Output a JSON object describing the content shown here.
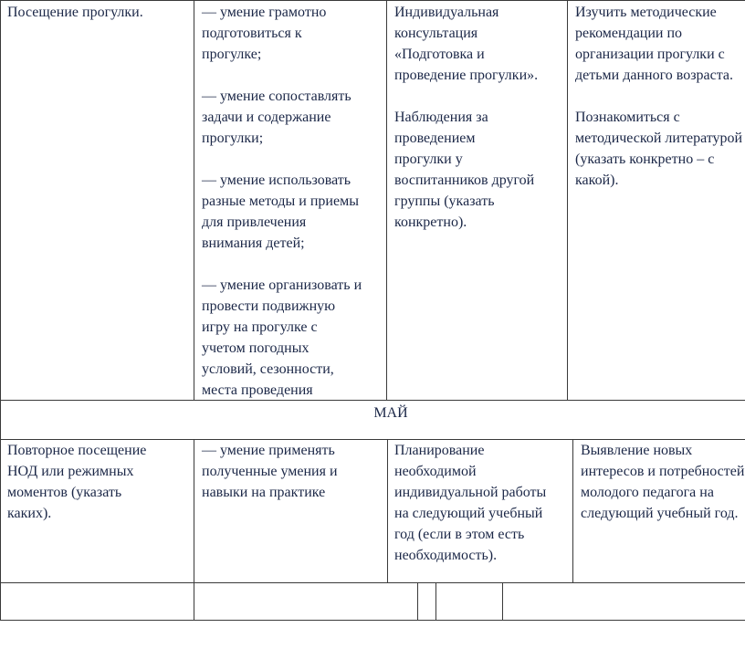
{
  "rows": [
    {
      "cells": [
        [
          "Посещение прогулки."
        ],
        [
          "— умение грамотно\nподготовиться к\nпрогулке;",
          "— умение сопоставлять\nзадачи и содержание\nпрогулки;",
          "—  умение использовать\nразные методы и приемы\nдля привлечения\nвнимания детей;",
          "— умение организовать и\nпровести подвижную\nигру на прогулке с\nучетом погодных\nусловий, сезонности,\nместа проведения"
        ],
        [
          "Индивидуальная\nконсультация\n«Подготовка и\nпроведение прогулки».",
          "Наблюдения за\nпроведением\nпрогулки  у\nвоспитанников другой\nгруппы (указать\nконкретно)."
        ],
        [
          "Изучить методические\nрекомендации по\nорганизации прогулки с\nдетьми данного возраста.",
          "Познакомиться с\nметодической литературой\n(указать конкретно – с\nкакой)."
        ]
      ]
    },
    {
      "cells": [
        [
          "Повторное посещение\nНОД или режимных\nмоментов (указать\nкаких)."
        ],
        [
          "— умение применять\nполученные умения и\nнавыки на практике"
        ],
        [
          "Планирование\nнеобходимой\nиндивидуальной работы\nна следующий учебный\nгод (если в этом есть\nнеобходимость)."
        ],
        [
          "Выявление новых\nинтересов и потребностей\nмолодого педагога на\nследующий учебный год."
        ]
      ]
    }
  ],
  "month_label": "МАЙ"
}
